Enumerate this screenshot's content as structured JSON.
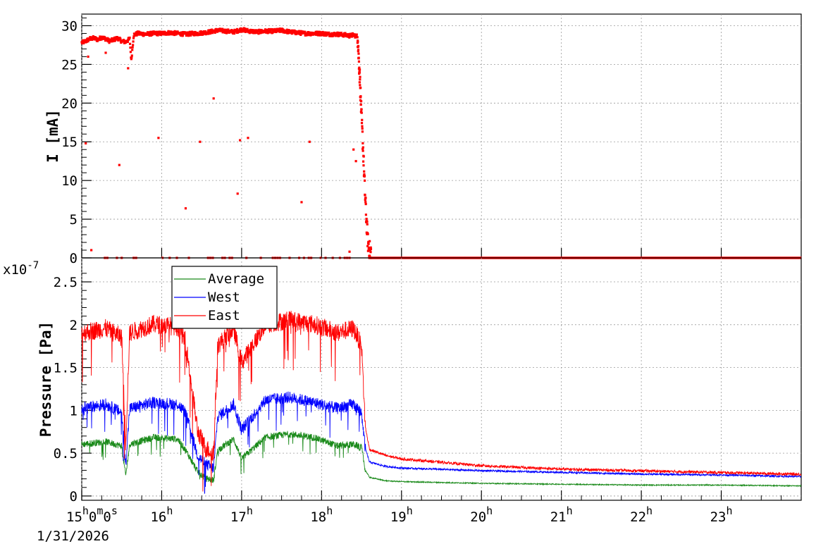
{
  "chart_data": [
    {
      "type": "scatter",
      "ylabel": "I [mA]",
      "ylim": [
        0,
        31.5
      ],
      "yticks": [
        0,
        5,
        10,
        15,
        20,
        25,
        30
      ],
      "grid": true,
      "x_unit": "hour",
      "xlim": [
        15.0,
        24.0
      ],
      "series": [
        {
          "color": "#ff0000",
          "points_x": [
            15.0,
            15.05,
            15.1,
            15.15,
            15.2,
            15.25,
            15.3,
            15.35,
            15.4,
            15.45,
            15.5,
            15.55,
            15.6,
            15.62,
            15.65,
            15.7,
            15.8,
            15.9,
            16.0,
            16.1,
            16.2,
            16.3,
            16.4,
            16.45,
            16.6,
            16.65,
            16.7,
            16.8,
            16.9,
            17.0,
            17.1,
            17.2,
            17.3,
            17.4,
            17.5,
            17.6,
            17.7,
            17.8,
            17.9,
            18.0,
            18.1,
            18.2,
            18.3,
            18.35,
            18.4,
            18.45,
            18.48,
            18.5,
            18.52,
            18.54,
            18.56,
            18.58,
            18.6,
            18.65,
            18.7,
            19.0,
            20.0,
            21.0,
            22.0,
            23.0,
            24.0
          ],
          "points_y": [
            27.8,
            28.0,
            28.3,
            28.4,
            28.2,
            28.5,
            28.3,
            28.0,
            28.2,
            28.4,
            28.0,
            27.9,
            28.3,
            25.5,
            28.8,
            29.0,
            28.9,
            29.0,
            29.0,
            29.1,
            29.0,
            28.9,
            29.0,
            29.0,
            29.2,
            29.3,
            29.4,
            29.3,
            29.2,
            29.5,
            29.3,
            29.2,
            29.3,
            29.3,
            29.4,
            29.2,
            29.1,
            29.0,
            29.0,
            29.0,
            28.9,
            28.9,
            28.8,
            28.7,
            28.8,
            28.6,
            23.0,
            18.0,
            14.0,
            9.0,
            5.0,
            2.0,
            1.0,
            0.3,
            0.0,
            0.0,
            0.0,
            0.0,
            0.0,
            0.0,
            0.0
          ],
          "outliers_x": [
            15.05,
            15.08,
            15.12,
            15.3,
            15.47,
            15.58,
            15.96,
            16.3,
            16.48,
            16.65,
            16.95,
            16.98,
            17.08,
            17.75,
            17.85,
            18.35,
            18.4,
            18.43
          ],
          "outliers_y": [
            14.8,
            26.0,
            1.0,
            26.5,
            12.0,
            24.5,
            15.5,
            6.4,
            15.0,
            20.6,
            8.3,
            15.2,
            15.5,
            7.2,
            15.0,
            0.8,
            14.0,
            12.5
          ]
        }
      ]
    },
    {
      "type": "line",
      "ylabel": "Pressure [Pa]",
      "scale_label": "x10",
      "scale_exponent": "-7",
      "ylim": [
        -0.05,
        2.78
      ],
      "yticks": [
        0,
        0.5,
        1,
        1.5,
        2,
        2.5
      ],
      "ytick_labels": [
        "0",
        "0.5",
        "1",
        "1.5",
        "2",
        "2.5"
      ],
      "grid": true,
      "legend_position": "top-left",
      "x_unit": "hour",
      "xlim": [
        15.0,
        24.0
      ],
      "series": [
        {
          "name": "Average",
          "color": "#1a8a1a",
          "x": [
            15.0,
            15.3,
            15.5,
            15.55,
            15.6,
            15.9,
            16.2,
            16.3,
            16.45,
            16.55,
            16.65,
            16.7,
            16.9,
            17.0,
            17.3,
            17.6,
            17.9,
            18.2,
            18.4,
            18.5,
            18.55,
            18.6,
            18.8,
            19.0,
            20.0,
            21.0,
            22.0,
            23.0,
            24.0
          ],
          "y": [
            0.62,
            0.65,
            0.6,
            0.25,
            0.62,
            0.7,
            0.68,
            0.55,
            0.3,
            0.22,
            0.2,
            0.55,
            0.68,
            0.45,
            0.7,
            0.74,
            0.7,
            0.6,
            0.62,
            0.58,
            0.3,
            0.22,
            0.18,
            0.17,
            0.15,
            0.14,
            0.13,
            0.13,
            0.12
          ],
          "noise": 0.08
        },
        {
          "name": "West",
          "color": "#0000ff",
          "x": [
            15.0,
            15.3,
            15.5,
            15.55,
            15.6,
            15.9,
            16.2,
            16.3,
            16.45,
            16.55,
            16.65,
            16.7,
            16.9,
            17.0,
            17.3,
            17.6,
            17.9,
            18.2,
            18.4,
            18.5,
            18.55,
            18.6,
            18.8,
            19.0,
            20.0,
            21.0,
            22.0,
            23.0,
            24.0
          ],
          "y": [
            1.05,
            1.1,
            1.0,
            0.4,
            1.05,
            1.12,
            1.1,
            1.0,
            0.5,
            0.4,
            0.35,
            0.95,
            1.1,
            0.8,
            1.15,
            1.18,
            1.12,
            1.05,
            1.1,
            1.0,
            0.55,
            0.4,
            0.35,
            0.33,
            0.3,
            0.28,
            0.26,
            0.25,
            0.23
          ],
          "noise": 0.14
        },
        {
          "name": "East",
          "color": "#ff0000",
          "x": [
            15.0,
            15.3,
            15.5,
            15.55,
            15.6,
            15.9,
            16.2,
            16.3,
            16.45,
            16.55,
            16.65,
            16.7,
            16.9,
            17.0,
            17.3,
            17.6,
            17.9,
            18.2,
            18.4,
            18.5,
            18.55,
            18.6,
            18.8,
            19.0,
            20.0,
            21.0,
            22.0,
            23.0,
            24.0
          ],
          "y": [
            1.95,
            2.0,
            1.9,
            0.65,
            1.95,
            2.05,
            2.02,
            1.85,
            0.8,
            0.6,
            0.55,
            1.8,
            2.0,
            1.6,
            2.05,
            2.1,
            2.05,
            1.95,
            2.0,
            1.8,
            0.8,
            0.55,
            0.48,
            0.44,
            0.36,
            0.32,
            0.3,
            0.28,
            0.26
          ],
          "noise": 0.22
        }
      ]
    }
  ],
  "x_axis": {
    "tick_hours": [
      15,
      16,
      17,
      18,
      19,
      20,
      21,
      22,
      23
    ],
    "tick_labels": [
      {
        "base": "15",
        "sup1": "h",
        "b2": "0",
        "sup2": "m",
        "b3": "0",
        "sup3": "s"
      },
      {
        "base": "16",
        "sup1": "h"
      },
      {
        "base": "17",
        "sup1": "h"
      },
      {
        "base": "18",
        "sup1": "h"
      },
      {
        "base": "19",
        "sup1": "h"
      },
      {
        "base": "20",
        "sup1": "h"
      },
      {
        "base": "21",
        "sup1": "h"
      },
      {
        "base": "22",
        "sup1": "h"
      },
      {
        "base": "23",
        "sup1": "h"
      }
    ],
    "date_label": "1/31/2026"
  }
}
